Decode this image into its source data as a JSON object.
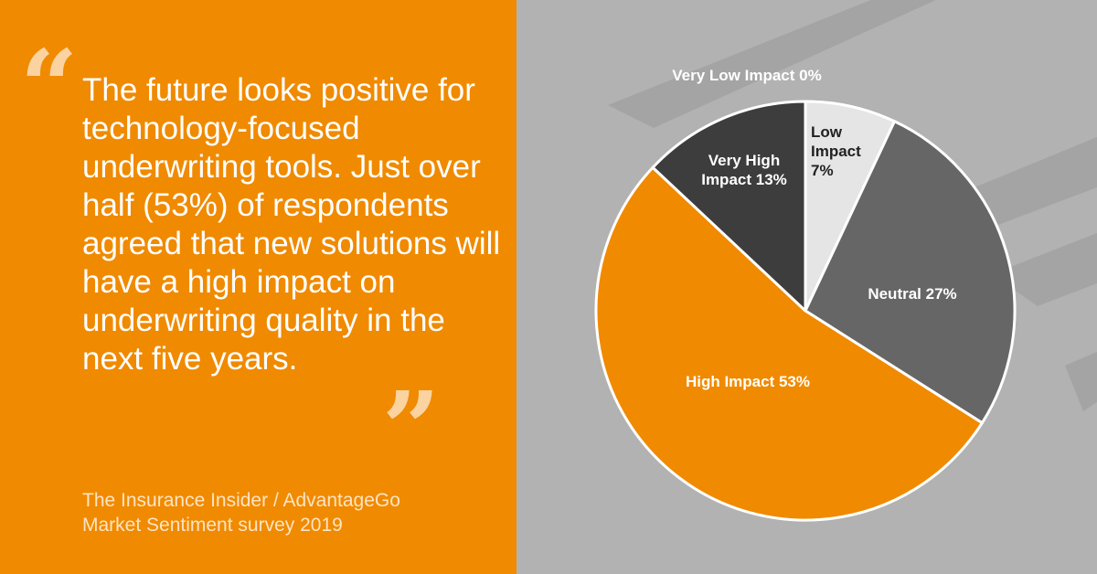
{
  "quote": {
    "open_mark": "“",
    "close_mark": "”",
    "text": "The future looks positive for technology-focused underwriting tools. Just over half (53%) of respondents agreed that new solutions will have a high impact on underwriting quality in the next five years."
  },
  "source": {
    "line1": "The Insurance Insider / AdvantageGo",
    "line2": "Market Sentiment survey 2019"
  },
  "colors": {
    "brand_orange": "#F08A00",
    "panel_grey": "#B2B2B2"
  },
  "chart_data": {
    "type": "pie",
    "title": "",
    "start_angle_deg": 0,
    "direction": "clockwise",
    "slices": [
      {
        "label": "Very Low Impact",
        "value": 0,
        "text": "Very Low Impact 0%",
        "color": "#FFFFFF"
      },
      {
        "label": "Low Impact",
        "value": 7,
        "text": "Low Impact 7%",
        "color": "#E5E5E5"
      },
      {
        "label": "Neutral",
        "value": 27,
        "text": "Neutral 27%",
        "color": "#666666"
      },
      {
        "label": "High Impact",
        "value": 53,
        "text": "High Impact 53%",
        "color": "#F08A00"
      },
      {
        "label": "Very High Impact",
        "value": 13,
        "text": "Very High Impact 13%",
        "color": "#3D3D3D"
      }
    ]
  }
}
